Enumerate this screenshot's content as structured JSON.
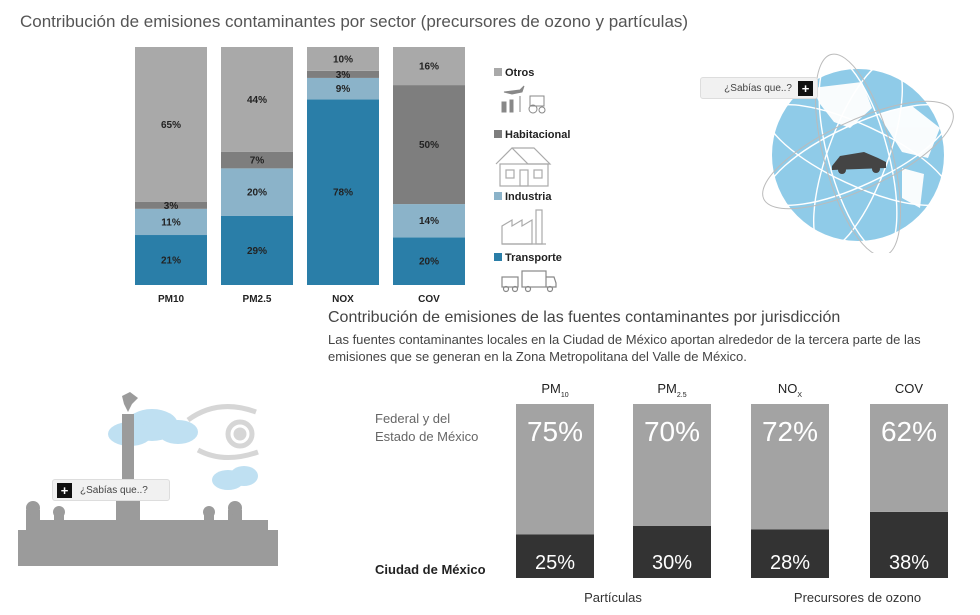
{
  "chart1_title": "Contribución de emisiones contaminantes por sector (precursores de ozono y partículas)",
  "chart2_title": "Contribución de emisiones de las fuentes contaminantes por jurisdicción",
  "chart2_description": "Las fuentes contaminantes locales en la Ciudad de México aportan alrededor de la tercera parte de las emisiones que se generan en la Zona Metropolitana del Valle de México.",
  "sabias_top": "¿Sabías que..?",
  "sabias_left": "¿Sabías que..?",
  "plus_symbol": "+",
  "colors": {
    "otros": "#a9a9a9",
    "habitacional": "#7e7e7e",
    "industria": "#8bb3c9",
    "transporte": "#2a7ea8",
    "federal": "#a3a3a3",
    "cdmx": "#333333",
    "globe": "#8fcbe8"
  },
  "chart_data": [
    {
      "type": "bar",
      "stacked": true,
      "categories": [
        "PM10",
        "PM2.5",
        "NOX",
        "COV"
      ],
      "series": [
        {
          "name": "Transporte",
          "values": [
            21,
            29,
            78,
            20
          ],
          "labels": [
            "21%",
            "29%",
            "78%",
            "20%"
          ]
        },
        {
          "name": "Industria",
          "values": [
            11,
            20,
            9,
            14
          ],
          "labels": [
            "11%",
            "20%",
            "9%",
            "14%"
          ]
        },
        {
          "name": "Habitacional",
          "values": [
            3,
            7,
            3,
            50
          ],
          "labels": [
            "3%",
            "7%",
            "3%",
            "50%"
          ]
        },
        {
          "name": "Otros",
          "values": [
            65,
            44,
            10,
            16
          ],
          "labels": [
            "65%",
            "44%",
            "10%",
            "16%"
          ]
        }
      ],
      "ylim": [
        0,
        100
      ],
      "legend_position": "right"
    },
    {
      "type": "bar",
      "stacked": true,
      "categories": [
        {
          "main": "PM",
          "sub": "10"
        },
        {
          "main": "PM",
          "sub": "2.5"
        },
        {
          "main": "NO",
          "sub": "X"
        },
        {
          "main": "COV",
          "sub": ""
        }
      ],
      "series": [
        {
          "name": "Ciudad de México",
          "values": [
            25,
            30,
            28,
            38
          ],
          "labels": [
            "25%",
            "30%",
            "28%",
            "38%"
          ]
        },
        {
          "name": "Federal y del Estado de México",
          "values": [
            75,
            70,
            72,
            62
          ],
          "labels": [
            "75%",
            "70%",
            "72%",
            "62%"
          ]
        }
      ],
      "series_labels": {
        "federal_line1": "Federal y del",
        "federal_line2": "Estado de México",
        "cdmx": "Ciudad de México"
      },
      "groups": [
        "Partículas",
        "Precursores de ozono"
      ],
      "ylim": [
        0,
        100
      ]
    }
  ]
}
